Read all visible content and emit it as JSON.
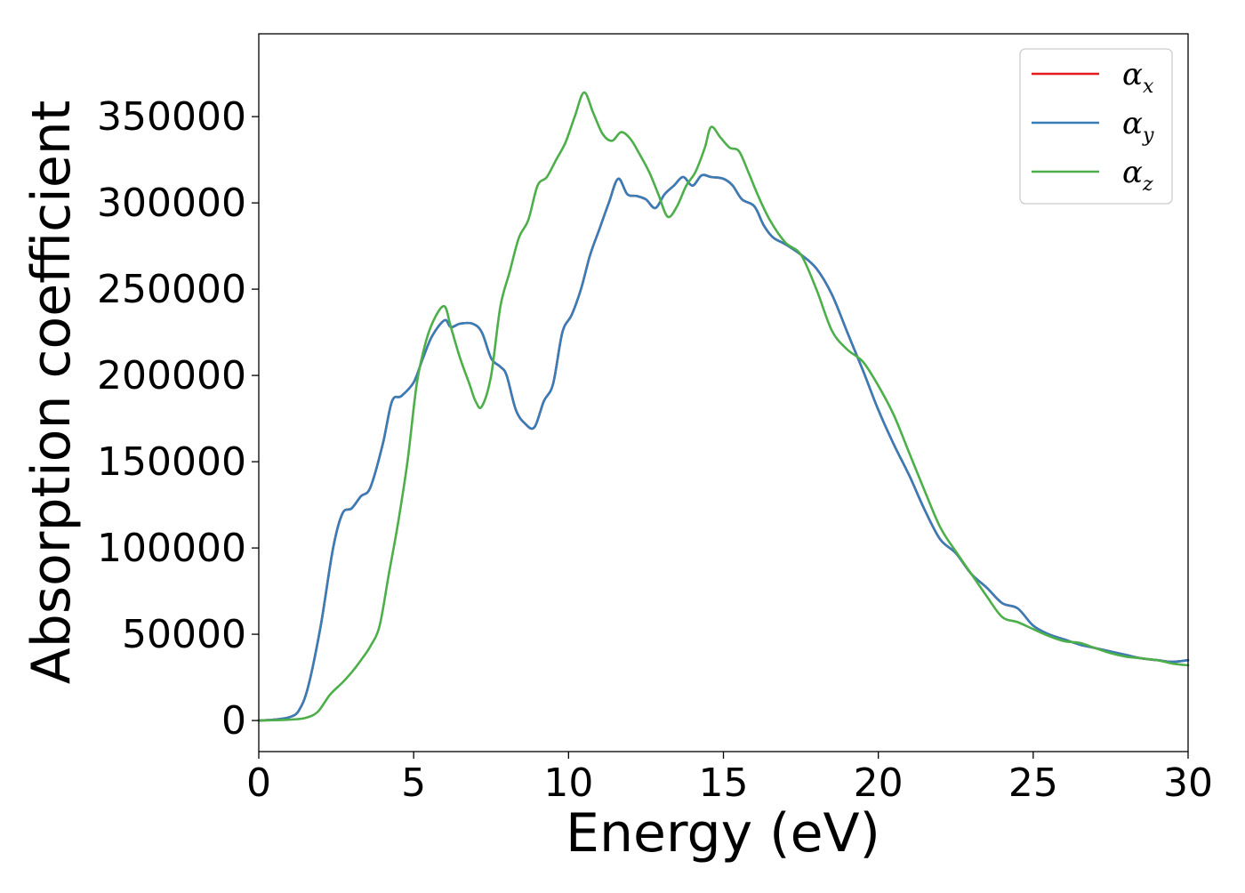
{
  "chart_data": {
    "type": "line",
    "title": "",
    "xlabel": "Energy (eV)",
    "ylabel": "Absorption coefficient",
    "xlim": [
      0,
      30
    ],
    "ylim": [
      -18000,
      398000
    ],
    "xticks": [
      0,
      5,
      10,
      15,
      20,
      25,
      30
    ],
    "yticks": [
      0,
      50000,
      100000,
      150000,
      200000,
      250000,
      300000,
      350000
    ],
    "xtick_labels": [
      "0",
      "5",
      "10",
      "15",
      "20",
      "25",
      "30"
    ],
    "ytick_labels": [
      "0",
      "50000",
      "100000",
      "150000",
      "200000",
      "250000",
      "300000",
      "350000"
    ],
    "grid": false,
    "legend_position": "top-right",
    "legend": [
      {
        "symbol": "α",
        "subscript": "x",
        "color": "#e41a1c"
      },
      {
        "symbol": "α",
        "subscript": "y",
        "color": "#377eb8"
      },
      {
        "symbol": "α",
        "subscript": "z",
        "color": "#4daf4a"
      }
    ],
    "series": [
      {
        "name": "αx",
        "color": "#e41a1c",
        "x": [
          0,
          0.5,
          1.0,
          1.3,
          1.6,
          2.0,
          2.4,
          2.7,
          3.0,
          3.3,
          3.6,
          4.0,
          4.3,
          4.6,
          5.0,
          5.3,
          5.6,
          6.0,
          6.2,
          6.5,
          6.9,
          7.2,
          7.5,
          7.8,
          8.0,
          8.3,
          8.6,
          8.9,
          9.2,
          9.5,
          9.8,
          10.1,
          10.4,
          10.7,
          11.0,
          11.3,
          11.6,
          11.9,
          12.2,
          12.5,
          12.8,
          13.1,
          13.4,
          13.7,
          14.0,
          14.3,
          14.6,
          15.0,
          15.3,
          15.6,
          16.0,
          16.3,
          16.6,
          17.0,
          17.5,
          18.0,
          18.5,
          19.0,
          19.5,
          20.0,
          20.5,
          21.0,
          21.5,
          22.0,
          22.5,
          23.0,
          23.5,
          24.0,
          24.5,
          25.0,
          25.5,
          26.0,
          26.5,
          27.0,
          27.5,
          28.0,
          28.5,
          29.0,
          29.5,
          30.0
        ],
        "y": [
          0,
          500,
          2000,
          6000,
          20000,
          55000,
          100000,
          120000,
          123000,
          130000,
          135000,
          160000,
          185000,
          188000,
          196000,
          210000,
          223000,
          232000,
          228000,
          230000,
          230000,
          225000,
          210000,
          205000,
          200000,
          180000,
          172000,
          170000,
          185000,
          195000,
          225000,
          235000,
          250000,
          270000,
          285000,
          300000,
          314000,
          305000,
          304000,
          302000,
          297000,
          305000,
          310000,
          315000,
          310000,
          316000,
          315000,
          314000,
          310000,
          302000,
          298000,
          287000,
          280000,
          276000,
          270000,
          262000,
          247000,
          225000,
          203000,
          180000,
          160000,
          142000,
          122000,
          105000,
          97000,
          85000,
          77000,
          68000,
          65000,
          55000,
          50000,
          47000,
          44000,
          42000,
          40000,
          38000,
          36000,
          35000,
          34000,
          35000
        ]
      },
      {
        "name": "αy",
        "color": "#377eb8",
        "x": [
          0,
          0.5,
          1.0,
          1.3,
          1.6,
          2.0,
          2.4,
          2.7,
          3.0,
          3.3,
          3.6,
          4.0,
          4.3,
          4.6,
          5.0,
          5.3,
          5.6,
          6.0,
          6.2,
          6.5,
          6.9,
          7.2,
          7.5,
          7.8,
          8.0,
          8.3,
          8.6,
          8.9,
          9.2,
          9.5,
          9.8,
          10.1,
          10.4,
          10.7,
          11.0,
          11.3,
          11.6,
          11.9,
          12.2,
          12.5,
          12.8,
          13.1,
          13.4,
          13.7,
          14.0,
          14.3,
          14.6,
          15.0,
          15.3,
          15.6,
          16.0,
          16.3,
          16.6,
          17.0,
          17.5,
          18.0,
          18.5,
          19.0,
          19.5,
          20.0,
          20.5,
          21.0,
          21.5,
          22.0,
          22.5,
          23.0,
          23.5,
          24.0,
          24.5,
          25.0,
          25.5,
          26.0,
          26.5,
          27.0,
          27.5,
          28.0,
          28.5,
          29.0,
          29.5,
          30.0
        ],
        "y": [
          0,
          500,
          2000,
          6000,
          20000,
          55000,
          100000,
          120000,
          123000,
          130000,
          135000,
          160000,
          185000,
          188000,
          196000,
          210000,
          223000,
          232000,
          228000,
          230000,
          230000,
          225000,
          210000,
          205000,
          200000,
          180000,
          172000,
          170000,
          185000,
          195000,
          225000,
          235000,
          250000,
          270000,
          285000,
          300000,
          314000,
          305000,
          304000,
          302000,
          297000,
          305000,
          310000,
          315000,
          310000,
          316000,
          315000,
          314000,
          310000,
          302000,
          298000,
          287000,
          280000,
          276000,
          270000,
          262000,
          247000,
          225000,
          203000,
          180000,
          160000,
          142000,
          122000,
          105000,
          97000,
          85000,
          77000,
          68000,
          65000,
          55000,
          50000,
          47000,
          44000,
          42000,
          40000,
          38000,
          36000,
          35000,
          34000,
          35000
        ]
      },
      {
        "name": "αz",
        "color": "#4daf4a",
        "x": [
          0,
          0.5,
          1.0,
          1.5,
          1.9,
          2.3,
          2.7,
          3.0,
          3.3,
          3.6,
          3.9,
          4.2,
          4.5,
          4.8,
          5.1,
          5.4,
          5.7,
          6.0,
          6.2,
          6.5,
          6.8,
          7.0,
          7.2,
          7.5,
          7.8,
          8.1,
          8.4,
          8.7,
          9.0,
          9.3,
          9.6,
          9.9,
          10.2,
          10.5,
          10.8,
          11.1,
          11.4,
          11.7,
          12.0,
          12.3,
          12.6,
          12.9,
          13.2,
          13.5,
          13.8,
          14.1,
          14.4,
          14.6,
          14.9,
          15.2,
          15.5,
          15.8,
          16.1,
          16.5,
          17.0,
          17.5,
          18.0,
          18.5,
          19.0,
          19.5,
          20.0,
          20.5,
          21.0,
          21.5,
          22.0,
          22.5,
          23.0,
          23.5,
          24.0,
          24.5,
          25.0,
          25.5,
          26.0,
          26.5,
          27.0,
          27.5,
          28.0,
          28.5,
          29.0,
          29.5,
          30.0
        ],
        "y": [
          0,
          200,
          500,
          1500,
          5000,
          15000,
          22000,
          28000,
          35000,
          43000,
          55000,
          85000,
          115000,
          150000,
          195000,
          220000,
          234000,
          240000,
          228000,
          210000,
          195000,
          185000,
          182000,
          200000,
          240000,
          260000,
          280000,
          290000,
          310000,
          315000,
          325000,
          335000,
          350000,
          364000,
          352000,
          340000,
          336000,
          341000,
          337000,
          328000,
          318000,
          305000,
          292000,
          298000,
          310000,
          318000,
          332000,
          344000,
          338000,
          332000,
          330000,
          318000,
          305000,
          290000,
          277000,
          270000,
          250000,
          226000,
          215000,
          208000,
          194000,
          177000,
          155000,
          133000,
          112000,
          98000,
          85000,
          72000,
          60000,
          57000,
          53000,
          49000,
          46000,
          45000,
          42000,
          39000,
          37000,
          36000,
          35000,
          33000,
          32000
        ]
      }
    ]
  }
}
